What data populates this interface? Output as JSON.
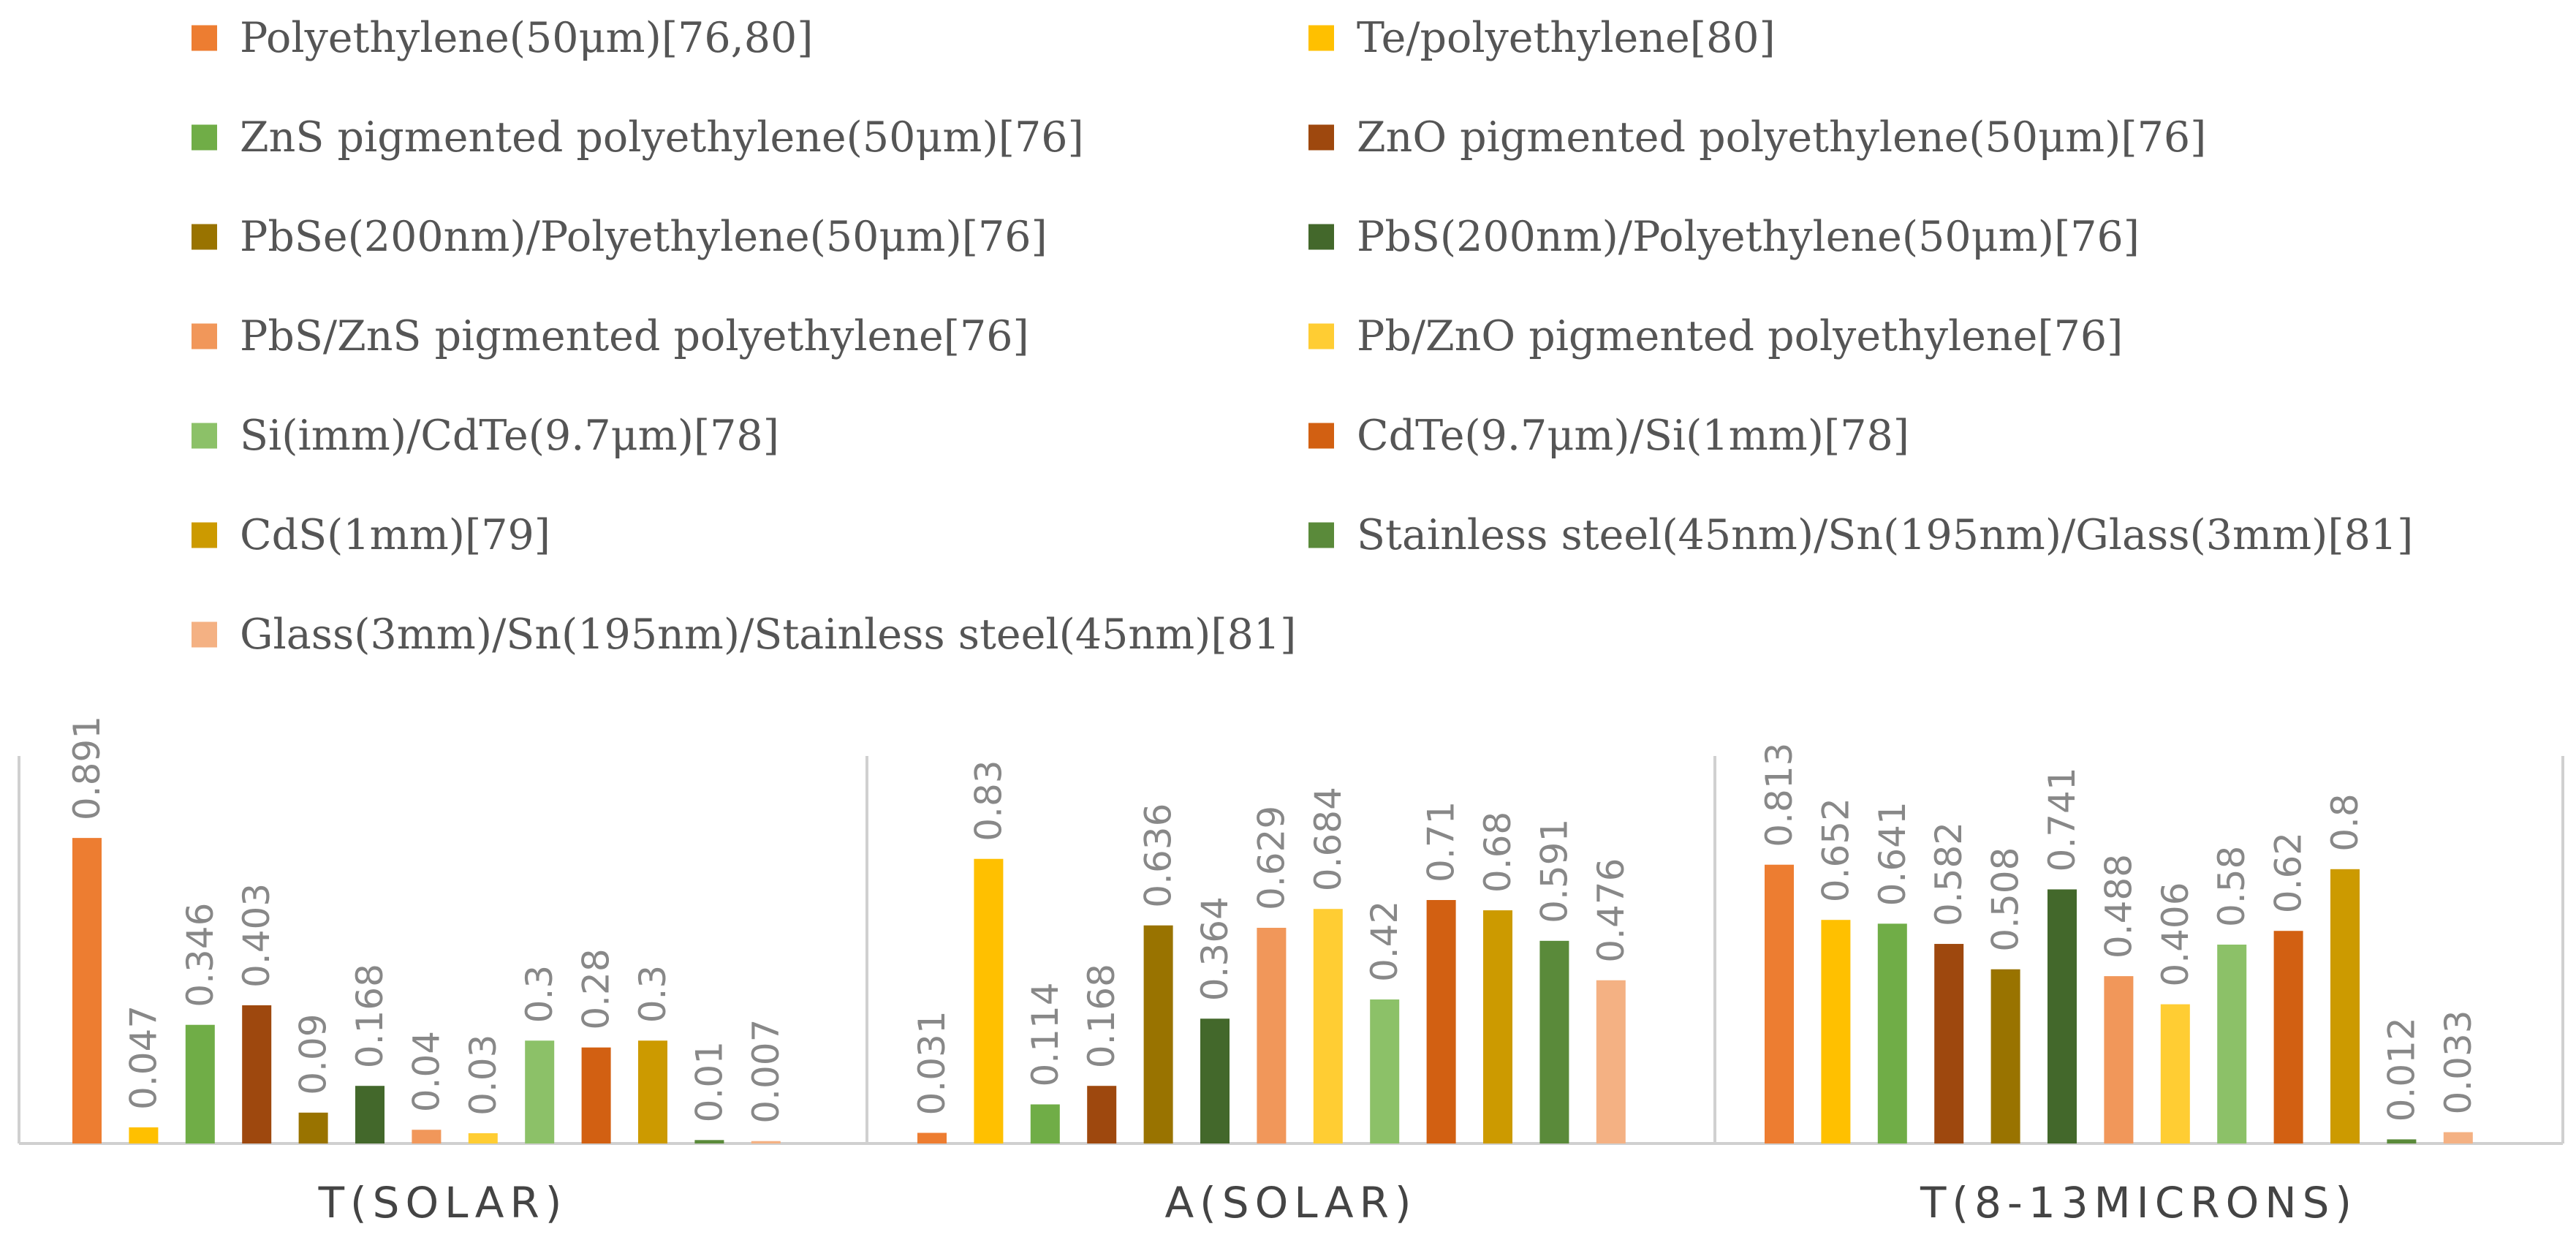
{
  "chart_data": {
    "type": "bar",
    "title": "",
    "xlabel": "",
    "ylabel": "",
    "ylim": [
      0,
      1
    ],
    "legend_position": "top",
    "categories": [
      "T(SOLAR)",
      "A(SOLAR)",
      "T(8-13MICRONS)"
    ],
    "series": [
      {
        "name": "Polyethylene(50μm)[76,80]",
        "color": "#ED7D31",
        "values": [
          0.891,
          0.031,
          0.813
        ]
      },
      {
        "name": "Te/polyethylene[80]",
        "color": "#FFC000",
        "values": [
          0.047,
          0.83,
          0.652
        ]
      },
      {
        "name": "ZnS pigmented polyethylene(50μm)[76]",
        "color": "#70AD47",
        "values": [
          0.346,
          0.114,
          0.641
        ]
      },
      {
        "name": "ZnO pigmented polyethylene(50μm)[76]",
        "color": "#9E480E",
        "values": [
          0.403,
          0.168,
          0.582
        ]
      },
      {
        "name": "PbSe(200nm)/Polyethylene(50μm)[76]",
        "color": "#997300",
        "values": [
          0.09,
          0.636,
          0.508
        ]
      },
      {
        "name": "PbS(200nm)/Polyethylene(50μm)[76]",
        "color": "#43682B",
        "values": [
          0.168,
          0.364,
          0.741
        ]
      },
      {
        "name": "PbS/ZnS pigmented polyethylene[76]",
        "color": "#F1975A",
        "values": [
          0.04,
          0.629,
          0.488
        ]
      },
      {
        "name": "Pb/ZnO pigmented polyethylene[76]",
        "color": "#FFCD33",
        "values": [
          0.03,
          0.684,
          0.406
        ]
      },
      {
        "name": "Si(imm)/CdTe(9.7μm)[78]",
        "color": "#8CC168",
        "values": [
          0.3,
          0.42,
          0.58
        ]
      },
      {
        "name": "CdTe(9.7μm)/Si(1mm)[78]",
        "color": "#D26012",
        "values": [
          0.28,
          0.71,
          0.62
        ]
      },
      {
        "name": "CdS(1mm)[79]",
        "color": "#CC9A00",
        "values": [
          0.3,
          0.68,
          0.8
        ]
      },
      {
        "name": "Stainless steel(45nm)/Sn(195nm)/Glass(3mm)[81]",
        "color": "#5A8A3A",
        "values": [
          0.01,
          0.591,
          0.012
        ]
      },
      {
        "name": "Glass(3mm)/Sn(195nm)/Stainless steel(45nm)[81]",
        "color": "#F4B183",
        "values": [
          0.007,
          0.476,
          0.033
        ]
      }
    ],
    "data_labels": [
      [
        "0.891",
        "0.031",
        "0.813"
      ],
      [
        "0.047",
        "0.83",
        "0.652"
      ],
      [
        "0.346",
        "0.114",
        "0.641"
      ],
      [
        "0.403",
        "0.168",
        "0.582"
      ],
      [
        "0.09",
        "0.636",
        "0.508"
      ],
      [
        "0.168",
        "0.364",
        "0.741"
      ],
      [
        "0.04",
        "0.629",
        "0.488"
      ],
      [
        "0.03",
        "0.684",
        "0.406"
      ],
      [
        "0.3",
        "0.42",
        "0.58"
      ],
      [
        "0.28",
        "0.71",
        "0.62"
      ],
      [
        "0.3",
        "0.68",
        "0.8"
      ],
      [
        "0.01",
        "0.591",
        "0.012"
      ],
      [
        "0.007",
        "0.476",
        "0.033"
      ]
    ],
    "grid": false
  }
}
